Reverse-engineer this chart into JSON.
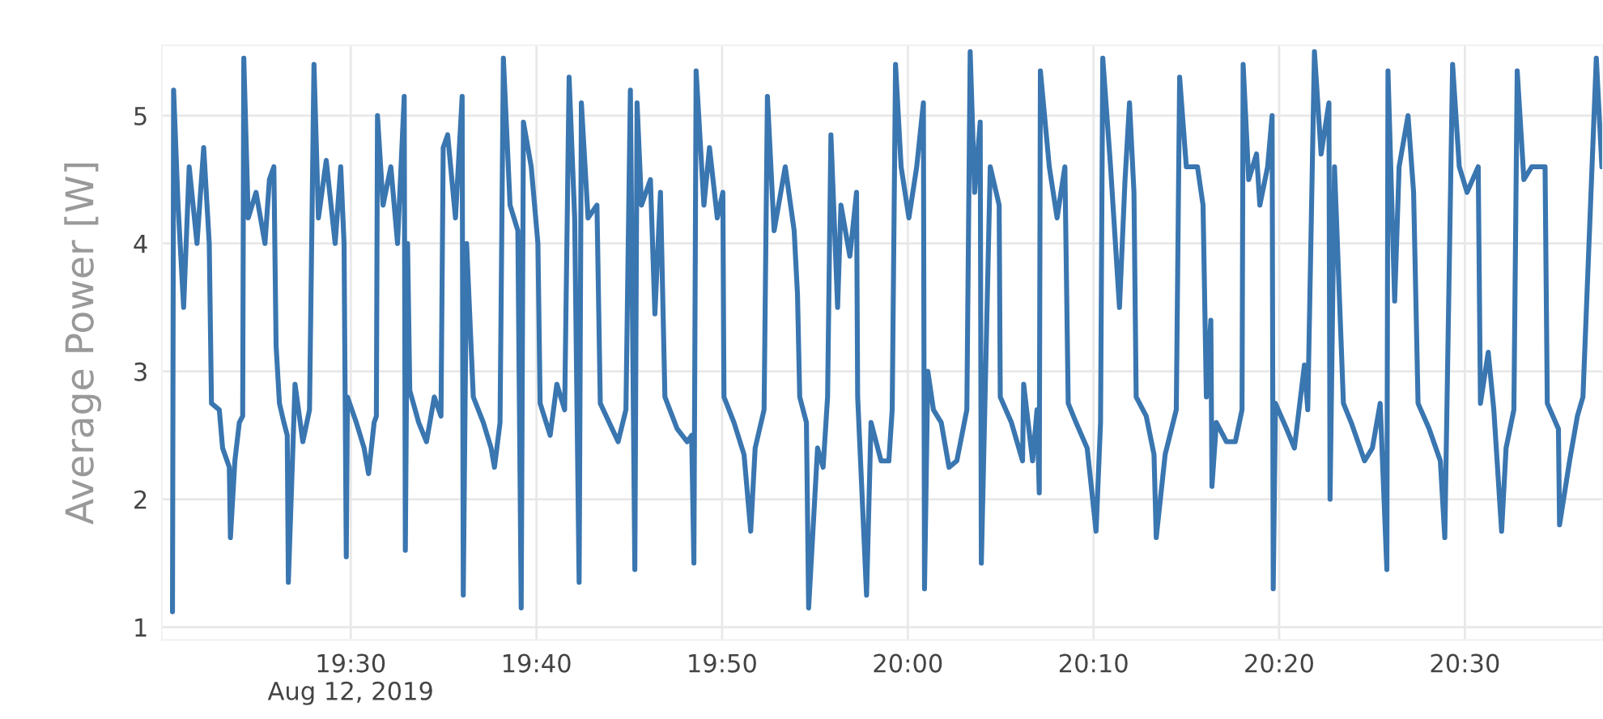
{
  "chart_data": {
    "type": "line",
    "ylabel": "Average Power [W]",
    "xlim": [
      19.3305,
      20.624
    ],
    "ylim": [
      0.9,
      5.55
    ],
    "xticks": [
      {
        "value": 19.5,
        "label": "19:30\nAug 12, 2019"
      },
      {
        "value": 19.6667,
        "label": "19:40"
      },
      {
        "value": 19.8333,
        "label": "19:50"
      },
      {
        "value": 20.0,
        "label": "20:00"
      },
      {
        "value": 20.1667,
        "label": "20:10"
      },
      {
        "value": 20.3333,
        "label": "20:20"
      },
      {
        "value": 20.5,
        "label": "20:30"
      }
    ],
    "yticks": [
      1,
      2,
      3,
      4,
      5
    ],
    "grid": true,
    "legend": false,
    "marker": "none",
    "line_style": "solid",
    "series": [
      {
        "color": "#3a76b0",
        "x": [
          19.34,
          19.341,
          19.345,
          19.35,
          19.355,
          19.362,
          19.368,
          19.373,
          19.375,
          19.382,
          19.385,
          19.391,
          19.392,
          19.396,
          19.4,
          19.403,
          19.404,
          19.408,
          19.415,
          19.423,
          19.427,
          19.431,
          19.433,
          19.436,
          19.44,
          19.443,
          19.444,
          19.45,
          19.457,
          19.463,
          19.467,
          19.471,
          19.478,
          19.486,
          19.491,
          19.494,
          19.496,
          19.497,
          19.505,
          19.512,
          19.516,
          19.521,
          19.523,
          19.524,
          19.529,
          19.536,
          19.542,
          19.548,
          19.549,
          19.551,
          19.553,
          19.561,
          19.568,
          19.575,
          19.581,
          19.583,
          19.587,
          19.594,
          19.6,
          19.601,
          19.604,
          19.61,
          19.619,
          19.626,
          19.629,
          19.634,
          19.637,
          19.643,
          19.65,
          19.653,
          19.655,
          19.662,
          19.668,
          19.67,
          19.679,
          19.685,
          19.692,
          19.696,
          19.701,
          19.705,
          19.707,
          19.713,
          19.721,
          19.724,
          19.732,
          19.74,
          19.747,
          19.751,
          19.755,
          19.757,
          19.761,
          19.769,
          19.773,
          19.778,
          19.782,
          19.793,
          19.802,
          19.806,
          19.808,
          19.81,
          19.817,
          19.822,
          19.829,
          19.834,
          19.835,
          19.844,
          19.853,
          19.859,
          19.863,
          19.871,
          19.874,
          19.88,
          19.89,
          19.898,
          19.901,
          19.903,
          19.909,
          19.911,
          19.919,
          19.924,
          19.928,
          19.931,
          19.937,
          19.94,
          19.948,
          19.954,
          19.955,
          19.963,
          19.967,
          19.976,
          19.983,
          19.986,
          19.989,
          19.994,
          20.001,
          20.008,
          20.014,
          20.015,
          20.018,
          20.023,
          20.03,
          20.037,
          20.044,
          20.053,
          20.056,
          20.06,
          20.065,
          20.066,
          20.074,
          20.082,
          20.083,
          20.093,
          20.103,
          20.104,
          20.112,
          20.116,
          20.118,
          20.119,
          20.127,
          20.134,
          20.141,
          20.144,
          20.151,
          20.161,
          20.169,
          20.173,
          20.175,
          20.182,
          20.19,
          20.195,
          20.199,
          20.203,
          20.205,
          20.214,
          20.221,
          20.223,
          20.231,
          20.241,
          20.244,
          20.25,
          20.26,
          20.265,
          20.268,
          20.272,
          20.273,
          20.277,
          20.286,
          20.294,
          20.3,
          20.301,
          20.306,
          20.313,
          20.316,
          20.323,
          20.327,
          20.328,
          20.33,
          20.34,
          20.347,
          20.356,
          20.359,
          20.365,
          20.371,
          20.378,
          20.379,
          20.383,
          20.391,
          20.398,
          20.41,
          20.417,
          20.424,
          20.43,
          20.431,
          20.437,
          20.441,
          20.449,
          20.454,
          20.458,
          20.468,
          20.478,
          20.482,
          20.489,
          20.495,
          20.502,
          20.512,
          20.514,
          20.521,
          20.526,
          20.533,
          20.537,
          20.544,
          20.547,
          20.553,
          20.56,
          20.572,
          20.574,
          20.584,
          20.585,
          20.594,
          20.601,
          20.606,
          20.618,
          20.623
        ],
        "values": [
          1.12,
          5.2,
          4.3,
          3.5,
          4.6,
          4.0,
          4.75,
          4.0,
          2.75,
          2.7,
          2.4,
          2.25,
          1.7,
          2.3,
          2.6,
          2.65,
          5.45,
          4.2,
          4.4,
          4.0,
          4.5,
          4.6,
          3.2,
          2.75,
          2.6,
          2.5,
          1.35,
          2.9,
          2.45,
          2.7,
          5.4,
          4.2,
          4.65,
          4.0,
          4.6,
          4.0,
          1.55,
          2.8,
          2.6,
          2.4,
          2.2,
          2.6,
          2.65,
          5.0,
          4.3,
          4.6,
          4.0,
          5.15,
          1.6,
          4.0,
          2.85,
          2.6,
          2.45,
          2.8,
          2.65,
          4.75,
          4.85,
          4.2,
          5.15,
          1.25,
          4.0,
          2.8,
          2.6,
          2.4,
          2.25,
          2.6,
          5.45,
          4.3,
          4.1,
          1.15,
          4.95,
          4.6,
          4.0,
          2.75,
          2.5,
          2.9,
          2.7,
          5.3,
          4.2,
          1.35,
          5.1,
          4.2,
          4.3,
          2.75,
          2.6,
          2.45,
          2.7,
          5.2,
          1.45,
          5.1,
          4.3,
          4.5,
          3.45,
          4.4,
          2.8,
          2.55,
          2.45,
          2.5,
          1.5,
          5.35,
          4.3,
          4.75,
          4.2,
          4.4,
          2.8,
          2.6,
          2.35,
          1.75,
          2.4,
          2.7,
          5.15,
          4.1,
          4.6,
          4.1,
          3.6,
          2.8,
          2.6,
          1.15,
          2.4,
          2.25,
          2.8,
          4.85,
          3.5,
          4.3,
          3.9,
          4.4,
          2.8,
          1.25,
          2.6,
          2.3,
          2.3,
          2.7,
          5.4,
          4.6,
          4.2,
          4.6,
          5.1,
          1.3,
          3.0,
          2.7,
          2.6,
          2.25,
          2.3,
          2.7,
          5.5,
          4.4,
          4.95,
          1.5,
          4.6,
          4.3,
          2.8,
          2.6,
          2.3,
          2.9,
          2.3,
          2.7,
          2.05,
          5.35,
          4.6,
          4.2,
          4.6,
          2.75,
          2.6,
          2.4,
          1.75,
          2.6,
          5.45,
          4.6,
          3.5,
          4.5,
          5.1,
          4.4,
          2.8,
          2.65,
          2.35,
          1.7,
          2.35,
          2.7,
          5.3,
          4.6,
          4.6,
          4.3,
          2.8,
          3.4,
          2.1,
          2.6,
          2.45,
          2.45,
          2.7,
          5.4,
          4.5,
          4.7,
          4.3,
          4.6,
          5.0,
          1.3,
          2.75,
          2.55,
          2.4,
          3.05,
          2.7,
          5.5,
          4.7,
          5.1,
          2.0,
          4.6,
          2.75,
          2.6,
          2.3,
          2.4,
          2.75,
          1.45,
          5.35,
          3.55,
          4.6,
          5.0,
          4.4,
          2.75,
          2.55,
          2.3,
          1.7,
          5.4,
          4.6,
          4.4,
          4.6,
          2.75,
          3.15,
          2.7,
          1.75,
          2.4,
          2.7,
          5.35,
          4.5,
          4.6,
          4.6,
          2.75,
          2.55,
          1.8,
          2.3,
          2.65,
          2.8,
          5.45,
          4.6
        ]
      }
    ]
  }
}
